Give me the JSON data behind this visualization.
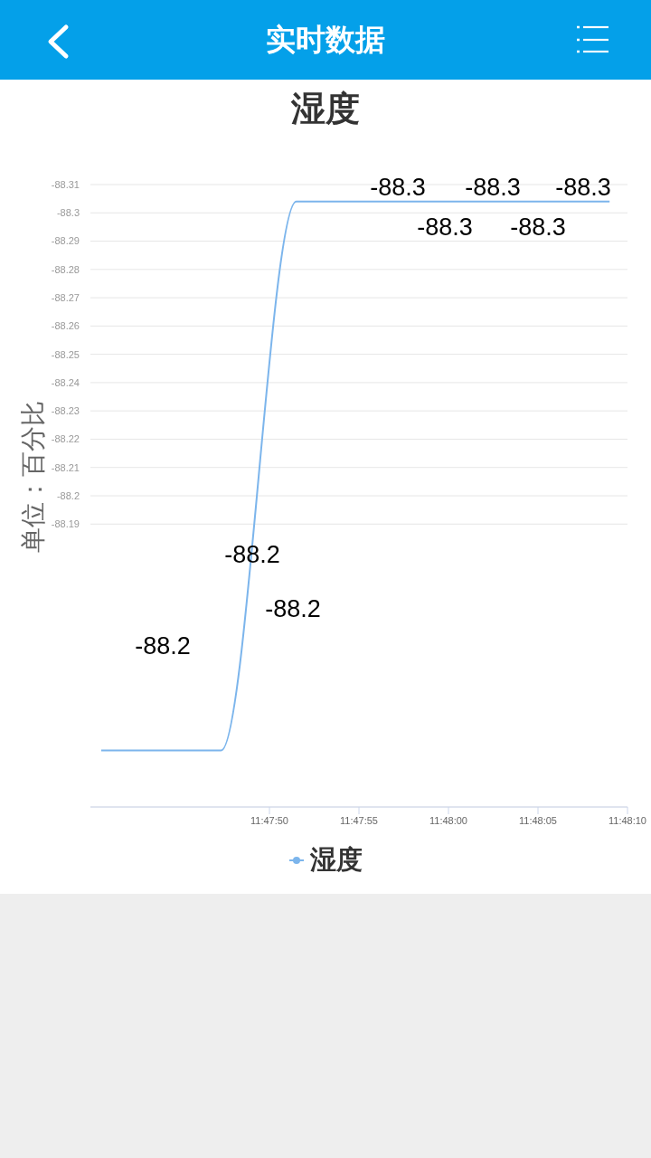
{
  "chart_data": {
    "type": "line",
    "title": "湿度",
    "ylabel": "单位：百分比",
    "annotations": [
      "实时数据",
      "-88.2",
      "-88.2",
      "-88.2",
      "-88.3",
      "-88.3",
      "-88.3",
      "-88.3",
      "-88.3"
    ],
    "x": [
      11.794611,
      11.796472,
      11.797639,
      11.8025
    ],
    "series": [
      {
        "name": "湿度",
        "color": "#7cb5ec",
        "values": [
          -88.11,
          -88.11,
          -88.304,
          -88.304
        ]
      }
    ],
    "xlim": [
      11.794444,
      11.802778
    ],
    "xticks": [
      {
        "value": 11.797222,
        "label": "11:47:50"
      },
      {
        "value": 11.798611,
        "label": "11:47:55"
      },
      {
        "value": 11.8,
        "label": "11:48:00"
      },
      {
        "value": 11.801389,
        "label": "11:48:05"
      },
      {
        "value": 11.802778,
        "label": "11:48:10"
      }
    ],
    "ylim": [
      -88.09,
      -88.31
    ],
    "yticks": [
      -88.31,
      -88.3,
      -88.29,
      -88.28,
      -88.27,
      -88.26,
      -88.25,
      -88.24,
      -88.23,
      -88.22,
      -88.21,
      -88.2,
      -88.19
    ],
    "grid": "y",
    "legend": "bottom"
  }
}
